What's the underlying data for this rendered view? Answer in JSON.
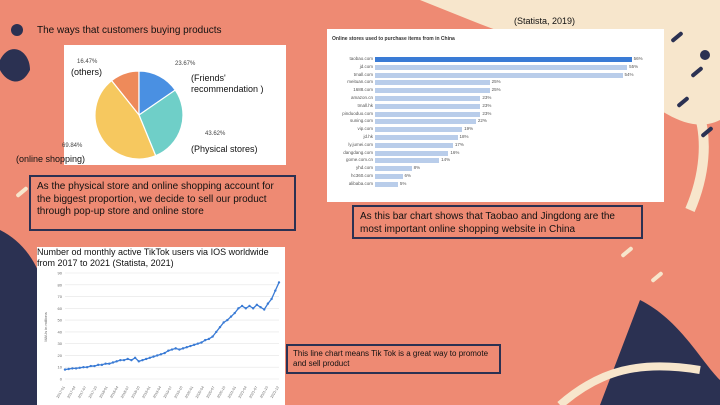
{
  "slide": {
    "colors": {
      "background": "#ee8a73",
      "cream": "#f7e6cc",
      "navy": "#2b3152",
      "blue_bar": "#3a7bd5",
      "light_bar": "#b9cdea"
    },
    "title": "The ways that customers buying products",
    "pie": {
      "labels": {
        "others": "(others)",
        "friends": "(Friends' recommendation )",
        "physical": "(Physical stores)",
        "online": "(online shopping)"
      },
      "pct_others": "16.47%",
      "pct_friends": "23.67%",
      "pct_physical": "43.62%",
      "pct_online": "69.84%"
    },
    "pie_caption": "As the physical store and online shopping account for the biggest proportion, we decide to sell our product through pop-up store and online store",
    "source_top": "(Statista, 2019)",
    "bar_chart_title": "Online stores used to purchase items from in China",
    "bar_caption": "As this bar chart shows that Taobao and Jingdong are the most important online shopping website in China",
    "line_title": "Number od monthly active TikTok users via IOS worldwide from 2017 to 2021 (Statista, 2021)",
    "line_caption": "This line chart  means Tik Tok is a great way to promote and sell product"
  },
  "chart_data": [
    {
      "type": "pie",
      "categories": [
        "others",
        "Friends' recommendation",
        "Physical stores",
        "online shopping"
      ],
      "values": [
        16.47,
        23.67,
        43.62,
        69.84
      ],
      "colors": [
        "#ee8a5a",
        "#4a90e2",
        "#6fcfc8",
        "#f6c85f"
      ]
    },
    {
      "type": "bar",
      "title": "Online stores used to purchase items from in China",
      "categories": [
        "taobao.com",
        "jd.com",
        "tmall.com",
        "meituan.com",
        "1688.com",
        "amazon.cn",
        "tmall.hk",
        "pinduoduo.com",
        "suning.com",
        "vip.com",
        "jd.hk",
        "ly.jumei.com",
        "dangdang.com",
        "gome.com.cn",
        "yhd.com",
        "hc360.com",
        "alibaba.com"
      ],
      "values": [
        56,
        55,
        54,
        25,
        25,
        23,
        23,
        23,
        22,
        19,
        18,
        17,
        16,
        14,
        8,
        6,
        5
      ],
      "value_labels": [
        "56%",
        "55%",
        "54%",
        "25%",
        "25%",
        "23%",
        "23%",
        "23%",
        "22%",
        "19%",
        "18%",
        "17%",
        "16%",
        "14%",
        "8%",
        "6%",
        "5%"
      ],
      "xlim": [
        0,
        60
      ]
    },
    {
      "type": "line",
      "title": "Number od monthly active TikTok users via IOS worldwide from 2017 to 2021 (Statista, 2021)",
      "ylabel": "MAUs in millions",
      "yticks": [
        0,
        10,
        20,
        30,
        40,
        50,
        60,
        70,
        80,
        90
      ],
      "ylim": [
        0,
        90
      ],
      "values": [
        8,
        8.5,
        9,
        9,
        9.5,
        10,
        10,
        11,
        11,
        12,
        12,
        13,
        13,
        14,
        15,
        16,
        16,
        17,
        16,
        18,
        15,
        16,
        17,
        18,
        19,
        20,
        21,
        22,
        24,
        25,
        26,
        25,
        26,
        27,
        28,
        29,
        30,
        31,
        33,
        34,
        36,
        40,
        44,
        48,
        50,
        53,
        56,
        60,
        62,
        60,
        62,
        60,
        63,
        61,
        59,
        64,
        68,
        75,
        82
      ],
      "x_ticks": [
        "2017-01",
        "2017-04",
        "2017-07",
        "2017-10",
        "2018-01",
        "2018-04",
        "2018-07",
        "2018-10",
        "2019-01",
        "2019-04",
        "2019-07",
        "2019-10",
        "2020-01",
        "2020-04",
        "2020-07",
        "2020-10",
        "2021-01",
        "2021-04",
        "2021-07",
        "2021-10",
        "2021-12"
      ]
    }
  ]
}
